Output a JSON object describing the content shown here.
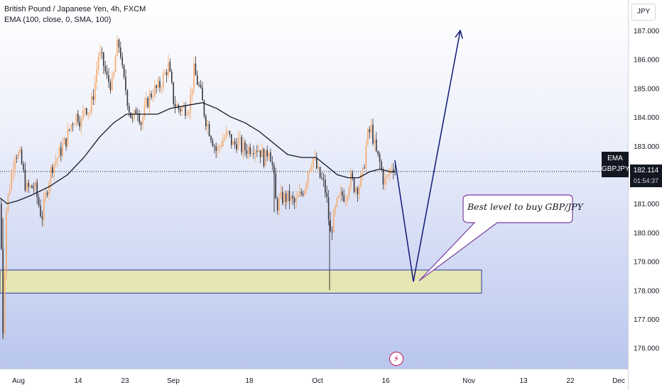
{
  "header": {
    "symbol_title": "British Pound / Japanese Yen, 4h, FXCM",
    "indicator": "EMA (100, close, 0, SMA, 100)"
  },
  "currency_button": "JPY",
  "price_tag": {
    "price": "182.114",
    "countdown": "01:54:37"
  },
  "symbol_tag": {
    "line1": "EMA",
    "line2": "GBPJPY"
  },
  "annotation": {
    "text": "Best level to buy GBP/JPY"
  },
  "event_icon": "lightning-icon",
  "colors": {
    "up": "#f5a86a",
    "down": "#37343a",
    "ema": "#131722",
    "arrow": "#1a237e",
    "zone_fill": "#e6e6b4",
    "zone_border": "#2c3aa0",
    "callout_border": "#7b3fa0"
  },
  "chart_data": {
    "type": "candlestick",
    "symbol": "GBPJPY",
    "timeframe": "4h",
    "ylim": [
      175.2,
      187.7
    ],
    "y_ticks": [
      "187.000",
      "186.000",
      "185.000",
      "184.000",
      "183.000",
      "182.000",
      "181.000",
      "180.000",
      "179.000",
      "178.000",
      "177.000",
      "176.000"
    ],
    "x_ticks": [
      "Aug",
      "14",
      "23",
      "Sep",
      "18",
      "Oct",
      "16",
      "Nov",
      "13",
      "22",
      "Dec"
    ],
    "current_price": 182.114,
    "price_path": [
      [
        0,
        181.0
      ],
      [
        3,
        176.3
      ],
      [
        8,
        180.8
      ],
      [
        20,
        182.8
      ],
      [
        28,
        182.6
      ],
      [
        36,
        181.5
      ],
      [
        48,
        181.6
      ],
      [
        58,
        180.5
      ],
      [
        66,
        181.6
      ],
      [
        72,
        182.3
      ],
      [
        80,
        182.6
      ],
      [
        92,
        183.2
      ],
      [
        100,
        183.8
      ],
      [
        108,
        184.1
      ],
      [
        114,
        183.8
      ],
      [
        118,
        184.4
      ],
      [
        126,
        184.2
      ],
      [
        132,
        185.0
      ],
      [
        138,
        186.2
      ],
      [
        144,
        185.9
      ],
      [
        150,
        185.3
      ],
      [
        158,
        185.1
      ],
      [
        163,
        186.4
      ],
      [
        168,
        186.5
      ],
      [
        172,
        185.4
      ],
      [
        176,
        185.0
      ],
      [
        180,
        184.4
      ],
      [
        186,
        183.8
      ],
      [
        192,
        184.4
      ],
      [
        198,
        183.8
      ],
      [
        206,
        184.5
      ],
      [
        214,
        184.9
      ],
      [
        222,
        185.0
      ],
      [
        230,
        185.4
      ],
      [
        236,
        185.8
      ],
      [
        244,
        184.5
      ],
      [
        250,
        184.3
      ],
      [
        258,
        184.3
      ],
      [
        266,
        184.4
      ],
      [
        272,
        185.6
      ],
      [
        280,
        185.0
      ],
      [
        288,
        184.0
      ],
      [
        296,
        183.4
      ],
      [
        304,
        182.8
      ],
      [
        312,
        183.2
      ],
      [
        320,
        183.4
      ],
      [
        328,
        183.0
      ],
      [
        334,
        183.2
      ],
      [
        340,
        182.9
      ],
      [
        348,
        182.9
      ],
      [
        356,
        183.0
      ],
      [
        364,
        182.9
      ],
      [
        372,
        182.5
      ],
      [
        378,
        183.0
      ],
      [
        384,
        182.1
      ],
      [
        388,
        180.9
      ],
      [
        396,
        181.2
      ],
      [
        406,
        181.2
      ],
      [
        414,
        181.0
      ],
      [
        420,
        181.2
      ],
      [
        428,
        181.6
      ],
      [
        434,
        182.3
      ],
      [
        440,
        182.6
      ],
      [
        448,
        182.0
      ],
      [
        456,
        181.6
      ],
      [
        460,
        181.0
      ],
      [
        464,
        179.9
      ],
      [
        468,
        180.4
      ],
      [
        474,
        181.0
      ],
      [
        480,
        181.3
      ],
      [
        486,
        181.3
      ],
      [
        492,
        181.9
      ],
      [
        498,
        181.6
      ],
      [
        504,
        181.6
      ],
      [
        510,
        182.0
      ],
      [
        516,
        183.3
      ],
      [
        522,
        183.6
      ],
      [
        528,
        182.8
      ],
      [
        534,
        182.4
      ],
      [
        540,
        181.7
      ],
      [
        546,
        182.0
      ],
      [
        552,
        182.4
      ],
      [
        556,
        182.1
      ]
    ],
    "ema_path": [
      [
        0,
        181.2
      ],
      [
        10,
        181.0
      ],
      [
        25,
        181.1
      ],
      [
        45,
        181.3
      ],
      [
        70,
        181.6
      ],
      [
        95,
        182.0
      ],
      [
        118,
        182.6
      ],
      [
        140,
        183.3
      ],
      [
        160,
        183.8
      ],
      [
        178,
        184.1
      ],
      [
        200,
        184.1
      ],
      [
        222,
        184.1
      ],
      [
        240,
        184.3
      ],
      [
        262,
        184.4
      ],
      [
        285,
        184.5
      ],
      [
        305,
        184.3
      ],
      [
        325,
        184.0
      ],
      [
        345,
        183.8
      ],
      [
        365,
        183.5
      ],
      [
        385,
        183.1
      ],
      [
        405,
        182.7
      ],
      [
        425,
        182.6
      ],
      [
        445,
        182.6
      ],
      [
        460,
        182.3
      ],
      [
        475,
        182.0
      ],
      [
        490,
        181.9
      ],
      [
        505,
        181.9
      ],
      [
        520,
        182.1
      ],
      [
        535,
        182.2
      ],
      [
        550,
        182.1
      ],
      [
        556,
        182.1
      ]
    ],
    "support_zone": {
      "from": 177.9,
      "to": 178.7
    },
    "projection_arrow": [
      [
        556,
        182.5
      ],
      [
        582,
        178.3
      ],
      [
        648,
        187.0
      ]
    ],
    "events": [
      "lightning-icon"
    ]
  }
}
